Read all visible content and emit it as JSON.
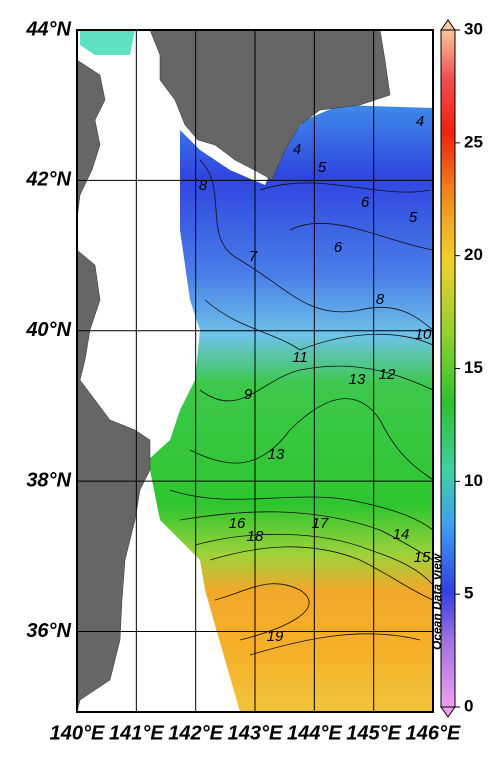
{
  "map": {
    "lonlim": [
      140,
      146
    ],
    "latlim": [
      34.93,
      44
    ],
    "lon_ticks": [
      {
        "value": 140,
        "label": "140°E"
      },
      {
        "value": 141,
        "label": "141°E"
      },
      {
        "value": 142,
        "label": "142°E"
      },
      {
        "value": 143,
        "label": "143°E"
      },
      {
        "value": 144,
        "label": "144°E"
      },
      {
        "value": 145,
        "label": "145°E"
      },
      {
        "value": 146,
        "label": "146°E"
      }
    ],
    "lat_ticks": [
      {
        "value": 36,
        "label": "36°N"
      },
      {
        "value": 38,
        "label": "38°N"
      },
      {
        "value": 40,
        "label": "40°N"
      },
      {
        "value": 42,
        "label": "42°N"
      },
      {
        "value": 44,
        "label": "44°N"
      }
    ],
    "colorbar": {
      "lim": [
        0,
        30
      ],
      "ticks": [
        0,
        5,
        10,
        15,
        20,
        25,
        30
      ]
    },
    "contour_labels": [
      4,
      5,
      4,
      8,
      6,
      5,
      6,
      7,
      8,
      10,
      11,
      12,
      13,
      9,
      13,
      16,
      17,
      18,
      14,
      15,
      19
    ],
    "credit": "Ocean Data View"
  }
}
